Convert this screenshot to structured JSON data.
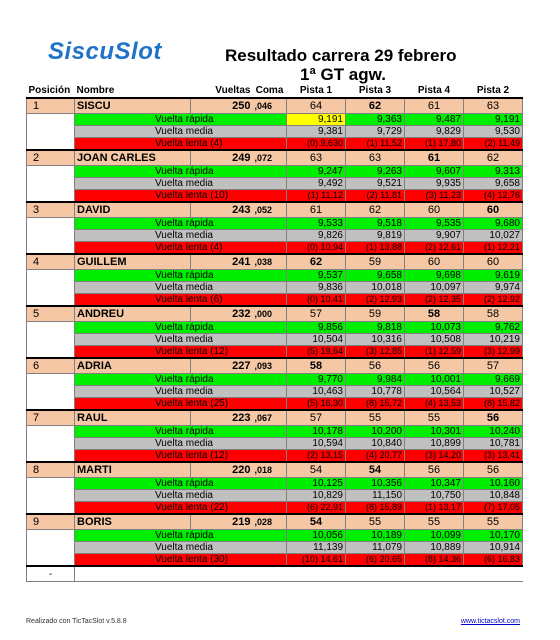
{
  "logo": "SiscuSlot",
  "title": "Resultado carrera  29 febrero",
  "subtitle": "1ª GT agw.",
  "headers": {
    "posicion": "Posición",
    "nombre": "Nombre",
    "vueltas": "Vueltas",
    "coma": "Coma",
    "pistas": [
      "Pista 1",
      "Pista 3",
      "Pista 4",
      "Pista 2"
    ]
  },
  "labels": {
    "fast": "Vuelta rápida",
    "avg": "Vuelta media",
    "slow_prefix": "Vuelta  lenta"
  },
  "racers": [
    {
      "pos": "1",
      "name": "SISCU",
      "laps": "250",
      "coma": ",046",
      "tracks": [
        "64",
        "62",
        "61",
        "63"
      ],
      "fast": [
        "9,191",
        "9,363",
        "9,487",
        "9,191"
      ],
      "avg": [
        "9,381",
        "9,729",
        "9,829",
        "9,530"
      ],
      "slow_count": "(4)",
      "slow": [
        "(0)  9,630",
        "(1)  11,52",
        "(1)  17,80",
        "(2)  11,49"
      ]
    },
    {
      "pos": "2",
      "name": "JOAN CARLES",
      "laps": "249",
      "coma": ",072",
      "tracks": [
        "63",
        "63",
        "61",
        "62"
      ],
      "fast": [
        "9,247",
        "9,263",
        "9,607",
        "9,313"
      ],
      "avg": [
        "9,492",
        "9,521",
        "9,935",
        "9,658"
      ],
      "slow_count": "(10)",
      "slow": [
        "(1)  11,12",
        "(2)  11,81",
        "(3)  11,23",
        "(4)  12,76"
      ]
    },
    {
      "pos": "3",
      "name": "DAVID",
      "laps": "243",
      "coma": ",052",
      "tracks": [
        "61",
        "62",
        "60",
        "60"
      ],
      "fast": [
        "9,533",
        "9,518",
        "9,535",
        "9,680"
      ],
      "avg": [
        "9,826",
        "9,819",
        "9,907",
        "10,027"
      ],
      "slow_count": "(4)",
      "slow": [
        "(0)  10,94",
        "(1)  13,88",
        "(2)  12,61",
        "(1)  12,21"
      ]
    },
    {
      "pos": "4",
      "name": "GUILLEM",
      "laps": "241",
      "coma": ",038",
      "tracks": [
        "62",
        "59",
        "60",
        "60"
      ],
      "fast": [
        "9,537",
        "9,658",
        "9,698",
        "9,619"
      ],
      "avg": [
        "9,836",
        "10,018",
        "10,097",
        "9,974"
      ],
      "slow_count": "(6)",
      "slow": [
        "(0)  10,41",
        "(2)  12,93",
        "(2)  12,35",
        "(2)  12,92"
      ]
    },
    {
      "pos": "5",
      "name": "ANDREU",
      "laps": "232",
      "coma": ",000",
      "tracks": [
        "57",
        "59",
        "58",
        "58"
      ],
      "fast": [
        "9,856",
        "9,818",
        "10,073",
        "9,762"
      ],
      "avg": [
        "10,504",
        "10,316",
        "10,508",
        "10,219"
      ],
      "slow_count": "(12)",
      "slow": [
        "(5)  19,64",
        "(3)  12,85",
        "(1)  12,59",
        "(3)  12,99"
      ]
    },
    {
      "pos": "6",
      "name": "ADRIA",
      "laps": "227",
      "coma": ",093",
      "tracks": [
        "58",
        "56",
        "56",
        "57"
      ],
      "fast": [
        "9,770",
        "9,984",
        "10,001",
        "9,669"
      ],
      "avg": [
        "10,463",
        "10,778",
        "10,564",
        "10,527"
      ],
      "slow_count": "(25)",
      "slow": [
        "(5)  16,30",
        "(8)  15,72",
        "(4)  13,53",
        "(8)  15,82"
      ]
    },
    {
      "pos": "7",
      "name": "RAUL",
      "laps": "223",
      "coma": ",067",
      "tracks": [
        "57",
        "55",
        "55",
        "56"
      ],
      "fast": [
        "10,178",
        "10,200",
        "10,301",
        "10,240"
      ],
      "avg": [
        "10,594",
        "10,840",
        "10,899",
        "10,781"
      ],
      "slow_count": "(12)",
      "slow": [
        "(2)  13,15",
        "(4)  20,77",
        "(3)  14,20",
        "(3)  13,41"
      ]
    },
    {
      "pos": "8",
      "name": "MARTI",
      "laps": "220",
      "coma": ",018",
      "tracks": [
        "54",
        "54",
        "56",
        "56"
      ],
      "fast": [
        "10,125",
        "10,356",
        "10,347",
        "10,160"
      ],
      "avg": [
        "10,829",
        "11,150",
        "10,750",
        "10,848"
      ],
      "slow_count": "(22)",
      "slow": [
        "(6)  22,91",
        "(8)  15,89",
        "(1)  13,17",
        "(7)  17,05"
      ]
    },
    {
      "pos": "9",
      "name": "BORIS",
      "laps": "219",
      "coma": ",028",
      "tracks": [
        "54",
        "55",
        "55",
        "55"
      ],
      "fast": [
        "10,056",
        "10,189",
        "10,099",
        "10,170"
      ],
      "avg": [
        "11,139",
        "11,079",
        "10,889",
        "10,914"
      ],
      "slow_count": "(30)",
      "slow": [
        "(10) 14,61",
        "(6)  20,65",
        "(8)  14,36",
        "(6)  16,83"
      ]
    }
  ],
  "bold_tracks": [
    [
      false,
      true,
      false,
      false
    ],
    [
      false,
      false,
      true,
      false
    ],
    [
      false,
      false,
      false,
      true
    ],
    [
      true,
      false,
      false,
      false
    ],
    [
      false,
      false,
      true,
      false
    ],
    [
      true,
      false,
      false,
      false
    ],
    [
      false,
      false,
      false,
      true
    ],
    [
      false,
      true,
      false,
      false
    ],
    [
      true,
      false,
      false,
      false
    ]
  ],
  "highlight": {
    "racer": 0,
    "track": 0
  },
  "last_row_pos": "-",
  "footer_left": "Realizado con TicTacSlot v.5.8.8",
  "footer_right": "www.tictacslot.com"
}
